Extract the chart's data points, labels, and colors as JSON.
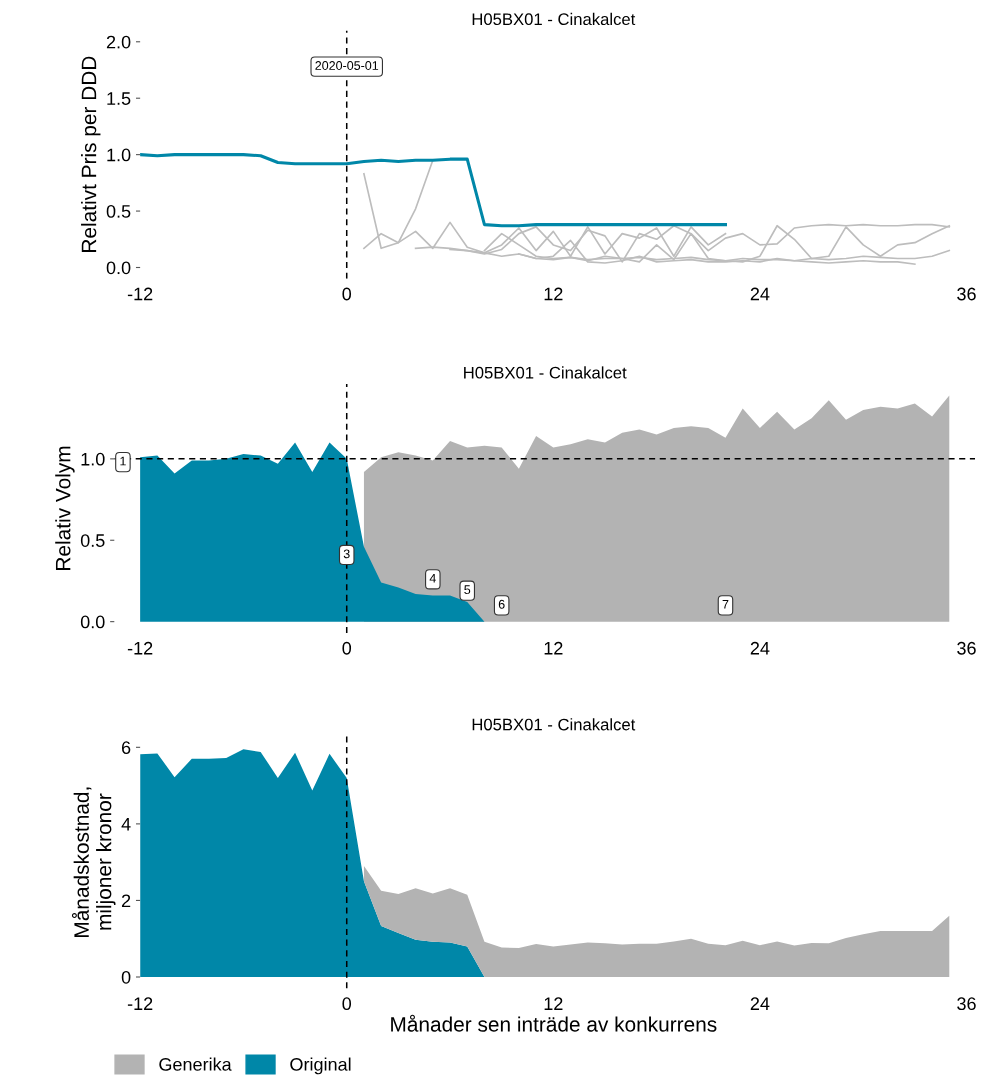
{
  "chart_data": [
    {
      "type": "line",
      "title": "H05BX01 - Cinakalcet",
      "ylabel": "Relativt Pris per DDD",
      "xlim": [
        -12,
        36
      ],
      "xticks": [
        -12,
        0,
        12,
        24,
        36
      ],
      "ylim": [
        -0.1,
        2.1
      ],
      "yticks": [
        {
          "value": 0,
          "label": "0.0"
        },
        {
          "value": 0.5,
          "label": "0.5"
        },
        {
          "value": 1,
          "label": "1.0"
        },
        {
          "value": 1.5,
          "label": "1.5"
        },
        {
          "value": 2,
          "label": "2.0"
        }
      ],
      "ref_lines": [
        {
          "axis": "x",
          "value": 0,
          "color": "#000000",
          "line_style": "dashed"
        }
      ],
      "annotations": [
        {
          "text": "2020-05-01",
          "x": 0,
          "y": 1.78
        }
      ],
      "series": [
        {
          "color": "#bdbdbd",
          "x": [
            1,
            2,
            3,
            4,
            5
          ],
          "values": [
            0.83,
            0.17,
            0.22,
            0.52,
            0.95
          ]
        },
        {
          "color": "#bdbdbd",
          "x": [
            1,
            2,
            3,
            4,
            5,
            6,
            7,
            8,
            9,
            10,
            11,
            12,
            13,
            14,
            15,
            16,
            17,
            18,
            19,
            20,
            21,
            22
          ],
          "values": [
            0.17,
            0.3,
            0.22,
            0.32,
            0.17,
            0.4,
            0.18,
            0.13,
            0.2,
            0.35,
            0.15,
            0.32,
            0.1,
            0.36,
            0.12,
            0.3,
            0.26,
            0.35,
            0.1,
            0.36,
            0.2,
            0.3
          ]
        },
        {
          "color": "#bdbdbd",
          "x": [
            4,
            5,
            6,
            7,
            8,
            9,
            10,
            11,
            12,
            13,
            14,
            15,
            16,
            17,
            18,
            19,
            20,
            21,
            22,
            23,
            24,
            25,
            26,
            27,
            28,
            29,
            30,
            31,
            32,
            33
          ],
          "values": [
            0.17,
            0.18,
            0.17,
            0.15,
            0.13,
            0.1,
            0.12,
            0.08,
            0.1,
            0.24,
            0.05,
            0.04,
            0.06,
            0.1,
            0.05,
            0.06,
            0.07,
            0.05,
            0.05,
            0.06,
            0.05,
            0.08,
            0.06,
            0.05,
            0.04,
            0.05,
            0.06,
            0.05,
            0.05,
            0.03
          ]
        },
        {
          "color": "#bdbdbd",
          "x": [
            6,
            7,
            8,
            9,
            10,
            11,
            12,
            13,
            14,
            15,
            16,
            17,
            18,
            19,
            20,
            21,
            22,
            23,
            24,
            25,
            26,
            27,
            28,
            29,
            30,
            31,
            32,
            33,
            34,
            35
          ],
          "values": [
            0.16,
            0.15,
            0.12,
            0.16,
            0.3,
            0.36,
            0.2,
            0.15,
            0.33,
            0.28,
            0.05,
            0.3,
            0.25,
            0.37,
            0.3,
            0.15,
            0.26,
            0.3,
            0.2,
            0.21,
            0.35,
            0.37,
            0.38,
            0.37,
            0.38,
            0.37,
            0.37,
            0.38,
            0.38,
            0.36
          ]
        },
        {
          "color": "#bdbdbd",
          "x": [
            8,
            9,
            10,
            11,
            12,
            13,
            14,
            15,
            16,
            17,
            18,
            19,
            20,
            21,
            22,
            23,
            24,
            25,
            26,
            27,
            28,
            29,
            30,
            31,
            32,
            33,
            34,
            35
          ],
          "values": [
            0.15,
            0.3,
            0.2,
            0.1,
            0.08,
            0.09,
            0.07,
            0.08,
            0.08,
            0.05,
            0.2,
            0.07,
            0.3,
            0.08,
            0.06,
            0.05,
            0.1,
            0.37,
            0.25,
            0.08,
            0.1,
            0.36,
            0.2,
            0.1,
            0.2,
            0.22,
            0.3,
            0.37
          ]
        },
        {
          "color": "#bdbdbd",
          "x": [
            10,
            11,
            12,
            13,
            14,
            15,
            16,
            17,
            18,
            19,
            20,
            21,
            22,
            23,
            24,
            25,
            26,
            27,
            28,
            29,
            30,
            31,
            32,
            33,
            34,
            35
          ],
          "values": [
            0.12,
            0.08,
            0.07,
            0.09,
            0.06,
            0.1,
            0.08,
            0.09,
            0.07,
            0.08,
            0.09,
            0.07,
            0.06,
            0.08,
            0.07,
            0.07,
            0.06,
            0.08,
            0.07,
            0.08,
            0.1,
            0.09,
            0.08,
            0.08,
            0.1,
            0.15
          ]
        },
        {
          "color": "#0087a8",
          "x": [
            -12,
            -11,
            -10,
            -9,
            -8,
            -7,
            -6,
            -5,
            -4,
            -3,
            -2,
            -1,
            0,
            1,
            2,
            3,
            4,
            5,
            6,
            7,
            8,
            9,
            10,
            11,
            12,
            13,
            14,
            15,
            16,
            17,
            18,
            19,
            20,
            21,
            22
          ],
          "values": [
            1.0,
            0.99,
            1.0,
            1.0,
            1.0,
            1.0,
            1.0,
            0.99,
            0.93,
            0.92,
            0.92,
            0.92,
            0.92,
            0.94,
            0.95,
            0.94,
            0.95,
            0.95,
            0.96,
            0.96,
            0.38,
            0.37,
            0.37,
            0.38,
            0.38,
            0.38,
            0.38,
            0.38,
            0.38,
            0.38,
            0.38,
            0.38,
            0.38,
            0.38,
            0.38
          ]
        }
      ]
    },
    {
      "type": "area",
      "title": "H05BX01 - Cinakalcet",
      "ylabel": "Relativ Volym",
      "xlim": [
        -13.5,
        36.5
      ],
      "xticks": [
        -12,
        0,
        12,
        24,
        36
      ],
      "ylim": [
        -0.07,
        1.46
      ],
      "yticks": [
        {
          "value": 0,
          "label": "0.0"
        },
        {
          "value": 0.5,
          "label": "0.5"
        },
        {
          "value": 1,
          "label": "1.0"
        }
      ],
      "ref_lines": [
        {
          "axis": "x",
          "value": 0,
          "color": "#000000",
          "line_style": "dashed"
        },
        {
          "axis": "y",
          "value": 1,
          "color": "#000000",
          "line_style": "dashed"
        }
      ],
      "annotations": [
        {
          "text": "1",
          "x": -13,
          "y": 0.98
        },
        {
          "text": "3",
          "x": 0,
          "y": 0.41
        },
        {
          "text": "4",
          "x": 5,
          "y": 0.26
        },
        {
          "text": "5",
          "x": 7,
          "y": 0.19
        },
        {
          "text": "6",
          "x": 9,
          "y": 0.1
        },
        {
          "text": "7",
          "x": 22,
          "y": 0.1
        }
      ],
      "series": [
        {
          "color": "#b3b3b3",
          "x": [
            1,
            2,
            3,
            4,
            5,
            6,
            7,
            8,
            9,
            10,
            11,
            12,
            13,
            14,
            15,
            16,
            17,
            18,
            19,
            20,
            21,
            22,
            23,
            24,
            25,
            26,
            27,
            28,
            29,
            30,
            31,
            32,
            33,
            34,
            35
          ],
          "values": [
            0.92,
            1.01,
            1.04,
            1.02,
            0.99,
            1.11,
            1.07,
            1.08,
            1.07,
            0.94,
            1.14,
            1.07,
            1.09,
            1.12,
            1.1,
            1.16,
            1.18,
            1.15,
            1.19,
            1.2,
            1.19,
            1.13,
            1.31,
            1.19,
            1.29,
            1.18,
            1.25,
            1.36,
            1.24,
            1.3,
            1.32,
            1.31,
            1.34,
            1.26,
            1.39
          ]
        },
        {
          "color": "#0087a8",
          "x": [
            -12,
            -11,
            -10,
            -9,
            -8,
            -7,
            -6,
            -5,
            -4,
            -3,
            -2,
            -1,
            0,
            1,
            2,
            3,
            4,
            5,
            6,
            7,
            8
          ],
          "values": [
            1.01,
            1.02,
            0.91,
            0.99,
            0.99,
            1.0,
            1.03,
            1.02,
            0.97,
            1.1,
            0.92,
            1.1,
            1.0,
            0.46,
            0.24,
            0.21,
            0.17,
            0.16,
            0.16,
            0.12,
            0.0
          ]
        }
      ]
    },
    {
      "type": "area",
      "stacked": true,
      "title": "H05BX01 - Cinakalcet",
      "ylabel": "Månadskostnad,\nmiljoner kronor",
      "xlabel": "Månader sen inträde av konkurrens",
      "xlim": [
        -12,
        36
      ],
      "xticks": [
        -12,
        0,
        12,
        24,
        36
      ],
      "ylim": [
        -0.3,
        6.3
      ],
      "yticks": [
        0,
        2,
        4,
        6
      ],
      "ref_lines": [
        {
          "axis": "x",
          "value": 0,
          "color": "#000000",
          "line_style": "dashed"
        }
      ],
      "legend": "bottom",
      "x": [
        -12,
        -11,
        -10,
        -9,
        -8,
        -7,
        -6,
        -5,
        -4,
        -3,
        -2,
        -1,
        0,
        1,
        2,
        3,
        4,
        5,
        6,
        7,
        8,
        9,
        10,
        11,
        12,
        13,
        14,
        15,
        16,
        17,
        18,
        19,
        20,
        21,
        22,
        23,
        24,
        25,
        26,
        27,
        28,
        29,
        30,
        31,
        32,
        33,
        34,
        35
      ],
      "series": [
        {
          "name": "Original",
          "color": "#0087a8",
          "values": [
            5.82,
            5.84,
            5.22,
            5.7,
            5.7,
            5.72,
            5.95,
            5.88,
            5.2,
            5.86,
            4.87,
            5.83,
            5.2,
            2.5,
            1.33,
            1.15,
            0.97,
            0.92,
            0.9,
            0.8,
            0.0,
            null,
            null,
            null,
            null,
            null,
            null,
            null,
            null,
            null,
            null,
            null,
            null,
            null,
            null,
            null,
            null,
            null,
            null,
            null,
            null,
            null,
            null,
            null,
            null,
            null,
            null,
            null
          ]
        },
        {
          "name": "Generika",
          "color": "#b3b3b3",
          "values": [
            null,
            null,
            null,
            null,
            null,
            null,
            null,
            null,
            null,
            null,
            null,
            null,
            null,
            0.4,
            0.92,
            1.02,
            1.35,
            1.26,
            1.42,
            1.35,
            0.92,
            0.77,
            0.76,
            0.86,
            0.8,
            0.85,
            0.9,
            0.88,
            0.85,
            0.87,
            0.87,
            0.93,
            1.0,
            0.87,
            0.83,
            0.95,
            0.83,
            0.93,
            0.82,
            0.89,
            0.88,
            1.02,
            1.12,
            1.2,
            1.2,
            1.2,
            1.2,
            1.6
          ]
        }
      ]
    }
  ]
}
